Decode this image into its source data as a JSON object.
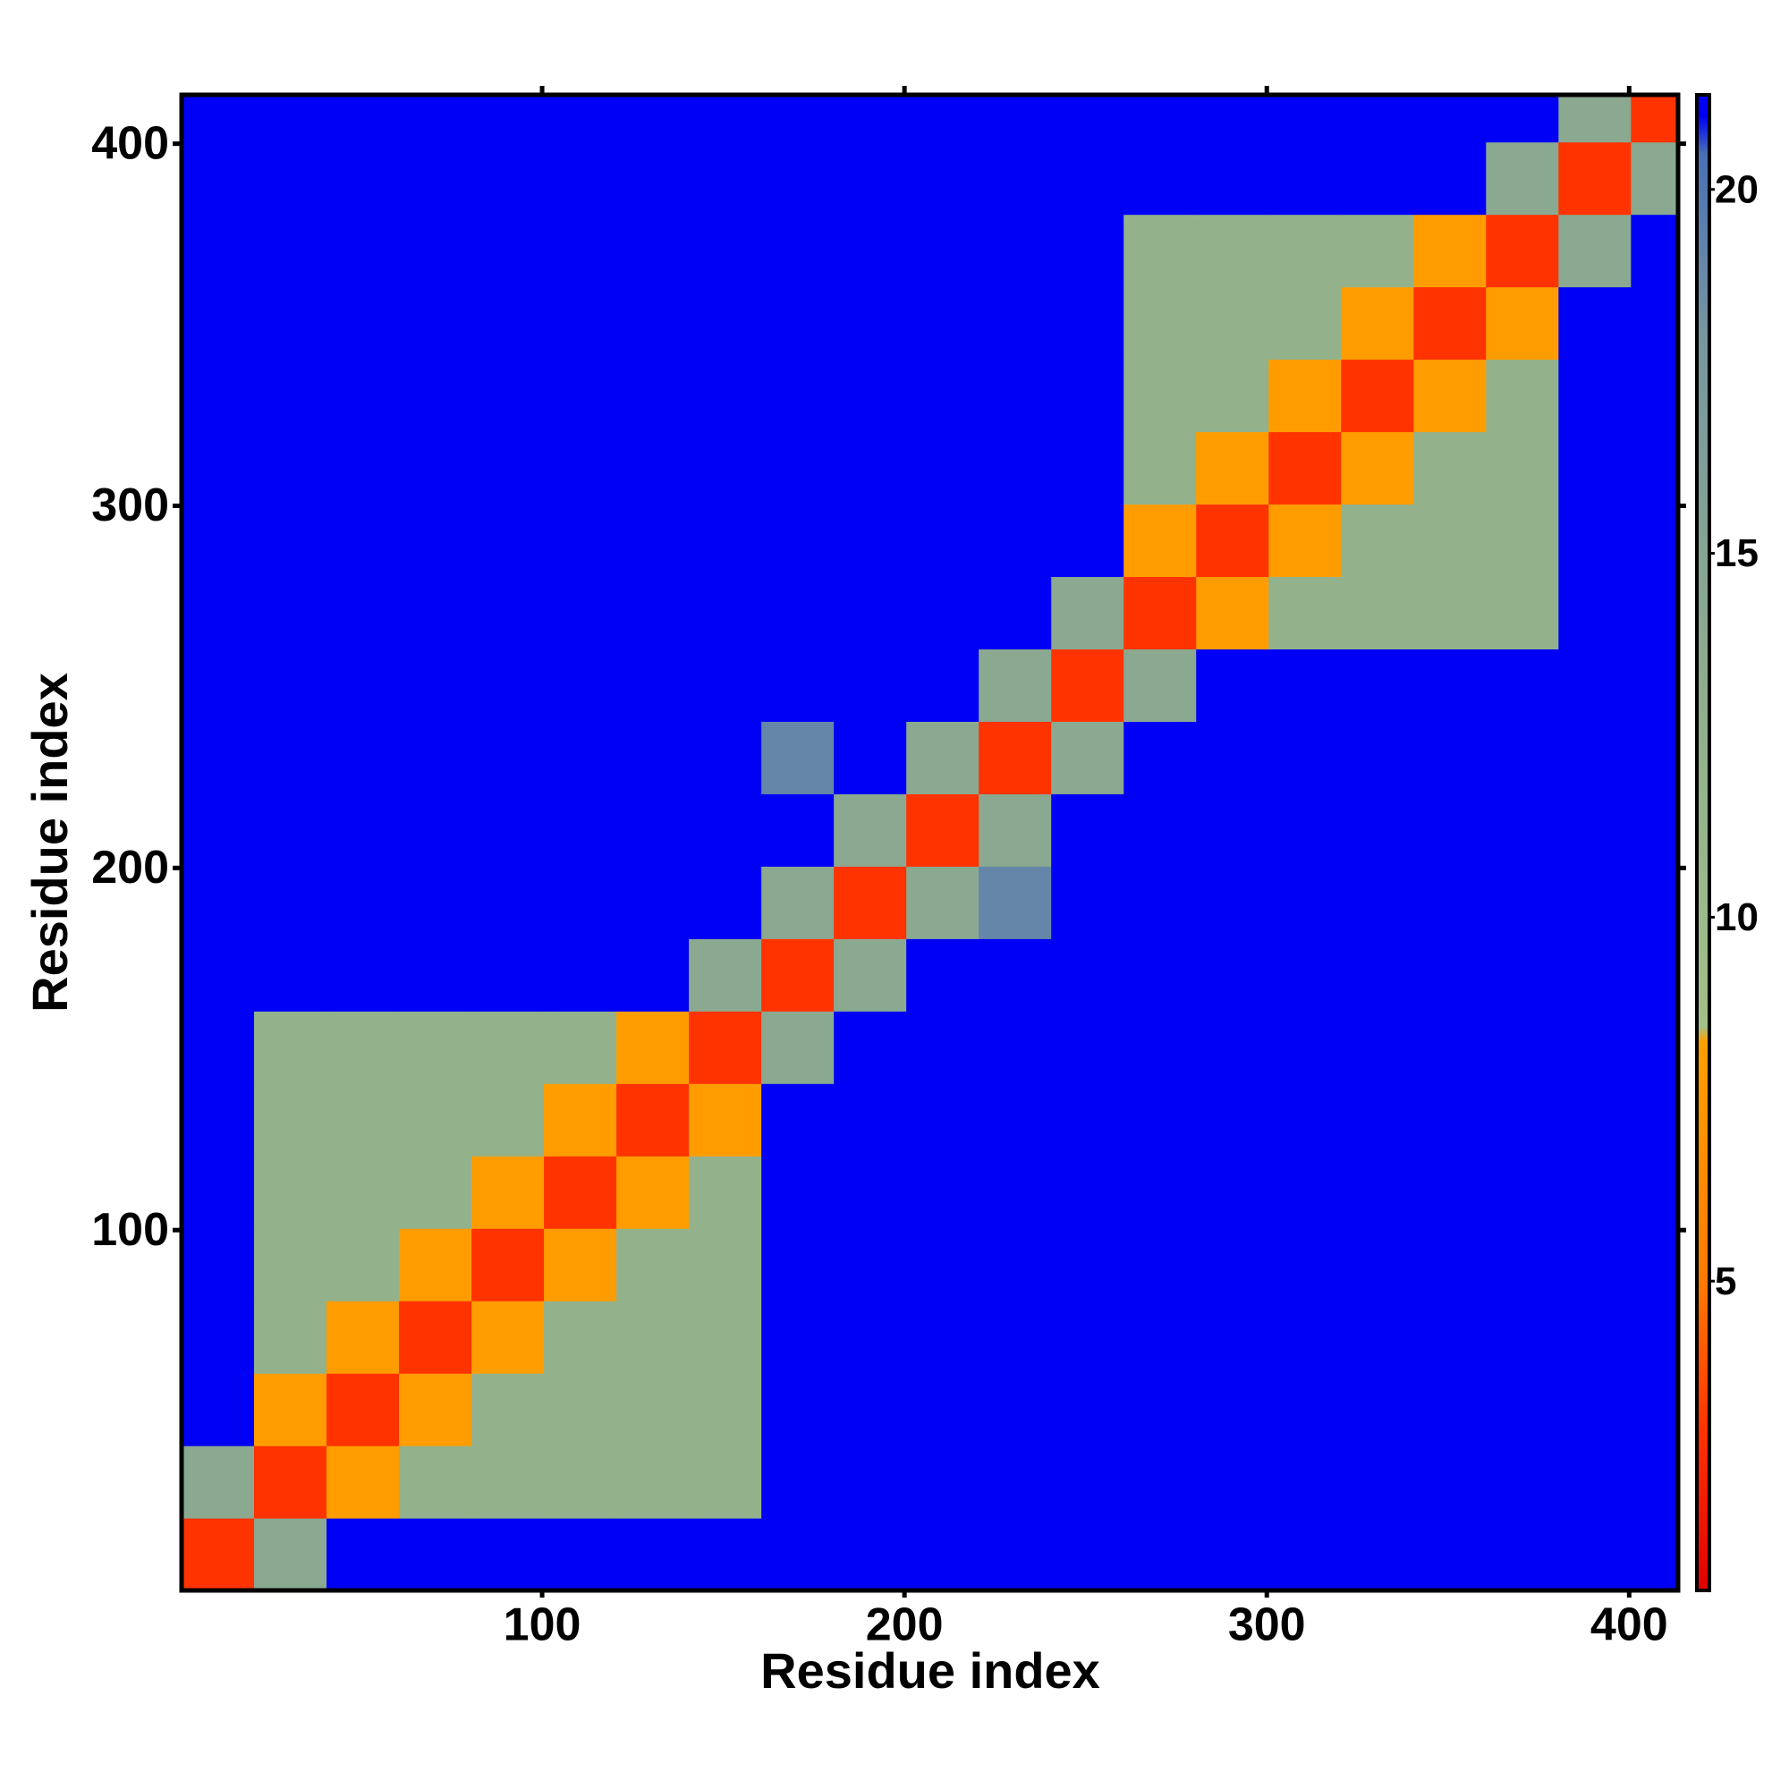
{
  "chart_data": {
    "type": "heatmap",
    "xlabel": "Residue index",
    "ylabel": "Residue index",
    "xlim": [
      0.5,
      413.5
    ],
    "ylim": [
      0.5,
      413.5
    ],
    "xticks": [
      100,
      200,
      300,
      400
    ],
    "yticks": [
      100,
      200,
      300,
      400
    ],
    "x_bins": [
      0.5,
      20.5,
      40.5,
      60.5,
      80.5,
      100.5,
      120.5,
      140.5,
      160.5,
      180.5,
      200.5,
      220.5,
      240.5,
      260.5,
      280.5,
      300.5,
      320.5,
      340.5,
      360.5,
      380.5,
      400.5,
      413.5
    ],
    "y_bins": [
      0.5,
      20.5,
      40.5,
      60.5,
      80.5,
      100.5,
      120.5,
      140.5,
      160.5,
      180.5,
      200.5,
      220.5,
      240.5,
      260.5,
      280.5,
      300.5,
      320.5,
      340.5,
      360.5,
      380.5,
      400.5,
      413.5
    ],
    "z": [
      [
        3,
        14,
        21,
        21,
        21,
        21,
        21,
        21,
        21,
        21,
        21,
        21,
        21,
        21,
        21,
        21,
        21,
        21,
        21,
        21,
        21
      ],
      [
        14,
        3,
        8,
        12,
        12,
        12,
        12,
        12,
        21,
        21,
        21,
        21,
        21,
        21,
        21,
        21,
        21,
        21,
        21,
        21,
        21
      ],
      [
        21,
        8,
        3,
        8,
        12,
        12,
        12,
        12,
        21,
        21,
        21,
        21,
        21,
        21,
        21,
        21,
        21,
        21,
        21,
        21,
        21
      ],
      [
        21,
        12,
        8,
        3,
        8,
        12,
        12,
        12,
        21,
        21,
        21,
        21,
        21,
        21,
        21,
        21,
        21,
        21,
        21,
        21,
        21
      ],
      [
        21,
        12,
        12,
        8,
        3,
        8,
        12,
        12,
        21,
        21,
        21,
        21,
        21,
        21,
        21,
        21,
        21,
        21,
        21,
        21,
        21
      ],
      [
        21,
        12,
        12,
        12,
        8,
        3,
        8,
        12,
        21,
        21,
        21,
        21,
        21,
        21,
        21,
        21,
        21,
        21,
        21,
        21,
        21
      ],
      [
        21,
        12,
        12,
        12,
        12,
        8,
        3,
        8,
        21,
        21,
        21,
        21,
        21,
        21,
        21,
        21,
        21,
        21,
        21,
        21,
        21
      ],
      [
        21,
        12,
        12,
        12,
        12,
        12,
        8,
        3,
        14,
        21,
        21,
        21,
        21,
        21,
        21,
        21,
        21,
        21,
        21,
        21,
        21
      ],
      [
        21,
        21,
        21,
        21,
        21,
        21,
        21,
        14,
        3,
        14,
        21,
        21,
        21,
        21,
        21,
        21,
        21,
        21,
        21,
        21,
        21
      ],
      [
        21,
        21,
        21,
        21,
        21,
        21,
        21,
        21,
        14,
        3,
        14,
        19,
        21,
        21,
        21,
        21,
        21,
        21,
        21,
        21,
        21
      ],
      [
        21,
        21,
        21,
        21,
        21,
        21,
        21,
        21,
        21,
        14,
        3,
        14,
        21,
        21,
        21,
        21,
        21,
        21,
        21,
        21,
        21
      ],
      [
        21,
        21,
        21,
        21,
        21,
        21,
        21,
        21,
        19,
        21,
        14,
        3,
        14,
        21,
        21,
        21,
        21,
        21,
        21,
        21,
        21
      ],
      [
        21,
        21,
        21,
        21,
        21,
        21,
        21,
        21,
        21,
        21,
        21,
        14,
        3,
        14,
        21,
        21,
        21,
        21,
        21,
        21,
        21
      ],
      [
        21,
        21,
        21,
        21,
        21,
        21,
        21,
        21,
        21,
        21,
        21,
        21,
        14,
        3,
        8,
        12,
        12,
        12,
        12,
        21,
        21
      ],
      [
        21,
        21,
        21,
        21,
        21,
        21,
        21,
        21,
        21,
        21,
        21,
        21,
        21,
        8,
        3,
        8,
        12,
        12,
        12,
        21,
        21
      ],
      [
        21,
        21,
        21,
        21,
        21,
        21,
        21,
        21,
        21,
        21,
        21,
        21,
        21,
        12,
        8,
        3,
        8,
        12,
        12,
        21,
        21
      ],
      [
        21,
        21,
        21,
        21,
        21,
        21,
        21,
        21,
        21,
        21,
        21,
        21,
        21,
        12,
        12,
        8,
        3,
        8,
        12,
        21,
        21
      ],
      [
        21,
        21,
        21,
        21,
        21,
        21,
        21,
        21,
        21,
        21,
        21,
        21,
        21,
        12,
        12,
        12,
        8,
        3,
        8,
        21,
        21
      ],
      [
        21,
        21,
        21,
        21,
        21,
        21,
        21,
        21,
        21,
        21,
        21,
        21,
        21,
        12,
        12,
        12,
        12,
        8,
        3,
        14,
        21
      ],
      [
        21,
        21,
        21,
        21,
        21,
        21,
        21,
        21,
        21,
        21,
        21,
        21,
        21,
        21,
        21,
        21,
        21,
        21,
        14,
        3,
        14
      ],
      [
        21,
        21,
        21,
        21,
        21,
        21,
        21,
        21,
        21,
        21,
        21,
        21,
        21,
        21,
        21,
        21,
        21,
        21,
        21,
        14,
        3
      ]
    ],
    "zlim": [
      0.75,
      21.3
    ],
    "zticks": [
      5,
      10,
      15,
      20
    ],
    "colorscale": [
      [
        0.75,
        "#e00000"
      ],
      [
        3,
        "#ff3300"
      ],
      [
        5,
        "#ff7a00"
      ],
      [
        8.3,
        "#ffa000"
      ],
      [
        8.5,
        "#a3c08a"
      ],
      [
        13,
        "#8fae8c"
      ],
      [
        18,
        "#7796a0"
      ],
      [
        20.5,
        "#4a6fb5"
      ],
      [
        21,
        "#0000f5"
      ],
      [
        21.3,
        "#0000f5"
      ]
    ]
  }
}
